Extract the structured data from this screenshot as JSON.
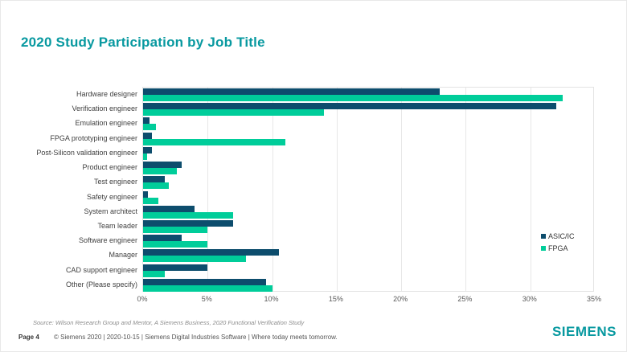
{
  "page": {
    "title": "2020 Study Participation by Job Title",
    "source_note": "Source:  Wilson Research Group and Mentor,  A Siemens Business, 2020 Functional Verification Study",
    "footer": {
      "page_label": "Page 4",
      "copyright": "© Siemens 2020 | 2020-10-15 | Siemens Digital Industries Software | Where today meets tomorrow.",
      "logo": "SIEMENS"
    }
  },
  "colors": {
    "title": "#0899A0",
    "asic": "#0D4D6D",
    "fpga": "#00CD9A",
    "grid": "#E7E7E7",
    "axis_text": "#595959",
    "label_text": "#404040"
  },
  "chart_data": {
    "type": "bar",
    "orientation": "horizontal",
    "title": "2020 Study Participation by Job Title",
    "xlabel": "",
    "ylabel": "",
    "xlim": [
      0,
      35
    ],
    "x_tick_labels": [
      "0%",
      "5%",
      "10%",
      "15%",
      "20%",
      "25%",
      "30%",
      "35%"
    ],
    "grid": true,
    "legend_position": "inside-right",
    "categories": [
      "Hardware designer",
      "Verification engineer",
      "Emulation engineer",
      "FPGA prototyping engineer",
      "Post-Silicon validation engineer",
      "Product engineer",
      "Test engineer",
      "Safety engineer",
      "System architect",
      "Team leader",
      "Software engineer",
      "Manager",
      "CAD support engineer",
      "Other (Please specify)"
    ],
    "series": [
      {
        "name": "ASIC/IC",
        "color": "#0D4D6D",
        "values": [
          23,
          32,
          0.5,
          0.7,
          0.7,
          3,
          1.7,
          0.4,
          4,
          7,
          3,
          10.5,
          5,
          9.5
        ]
      },
      {
        "name": "FPGA",
        "color": "#00CD9A",
        "values": [
          32.5,
          14,
          1,
          11,
          0.3,
          2.6,
          2,
          1.2,
          7,
          5,
          5,
          8,
          1.7,
          10
        ]
      }
    ]
  }
}
